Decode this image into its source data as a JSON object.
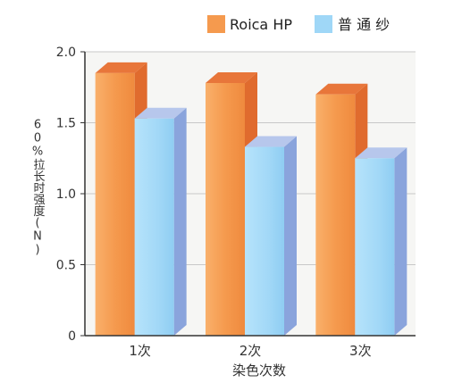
{
  "chart_data": {
    "type": "bar",
    "style": "3d",
    "title": "",
    "xlabel": "染色次数",
    "ylabel": "60%拉长时强度(N)",
    "categories": [
      "1次",
      "2次",
      "3次"
    ],
    "ylim": [
      0,
      2.0
    ],
    "yticks": [
      "0",
      "0.5",
      "1.0",
      "1.5",
      "2.0"
    ],
    "ytick_values": [
      0,
      0.5,
      1.0,
      1.5,
      2.0
    ],
    "grid": true,
    "legend_position": "top-right",
    "series": [
      {
        "name": "Roica HP",
        "values": [
          1.85,
          1.78,
          1.7
        ],
        "color": "#f59a4e"
      },
      {
        "name": "普 通 纱",
        "values": [
          1.53,
          1.33,
          1.25
        ],
        "color": "#9fd7f7"
      }
    ]
  },
  "colors": {
    "background": "#ffffff",
    "plot_area": "#f6f6f4",
    "grid": "#c8c8c8",
    "axis": "#333333",
    "text": "#333333"
  }
}
